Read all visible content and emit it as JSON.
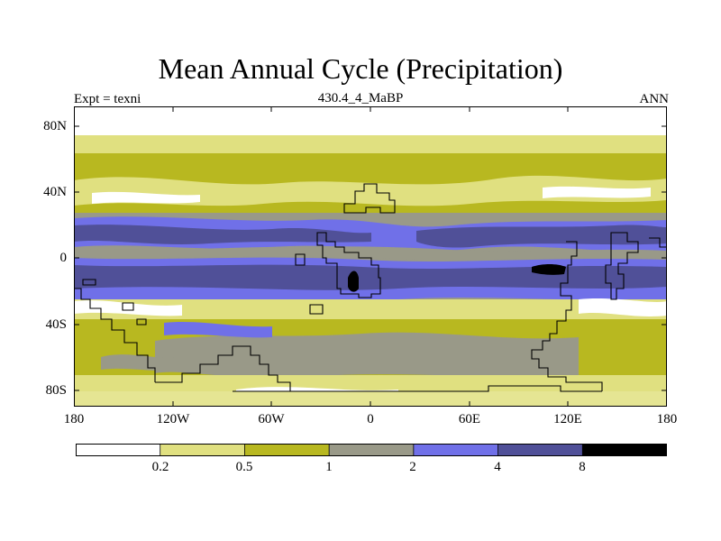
{
  "title": "Mean Annual Cycle (Precipitation)",
  "subtitle_left": "Expt = texni",
  "subtitle_center": "430.4_4_MaBP",
  "subtitle_right": "ANN",
  "lat_labels": [
    "80N",
    "40N",
    "0",
    "40S",
    "80S"
  ],
  "lon_labels": [
    "180",
    "120W",
    "60W",
    "0",
    "60E",
    "120E",
    "180"
  ],
  "colorbar": {
    "labels": [
      "0.2",
      "0.5",
      "1",
      "2",
      "4",
      "8"
    ],
    "colors": [
      "#ffffff",
      "#e0e080",
      "#b8b820",
      "#999988",
      "#7070e8",
      "#505098",
      "#000000"
    ]
  },
  "chart_data": {
    "type": "heatmap",
    "title": "Mean Annual Cycle (Precipitation)",
    "variable": "Precipitation",
    "experiment": "texni",
    "period": "430.4_4_MaBP",
    "season": "ANN",
    "x_axis": {
      "ticks": [
        "180",
        "120W",
        "60W",
        "0",
        "60E",
        "120E",
        "180"
      ],
      "range": [
        -180,
        180
      ]
    },
    "y_axis": {
      "ticks": [
        "80N",
        "40N",
        "0",
        "40S",
        "80S"
      ],
      "range": [
        -90,
        90
      ]
    },
    "levels": [
      0.2,
      0.5,
      1,
      2,
      4,
      8
    ]
  }
}
